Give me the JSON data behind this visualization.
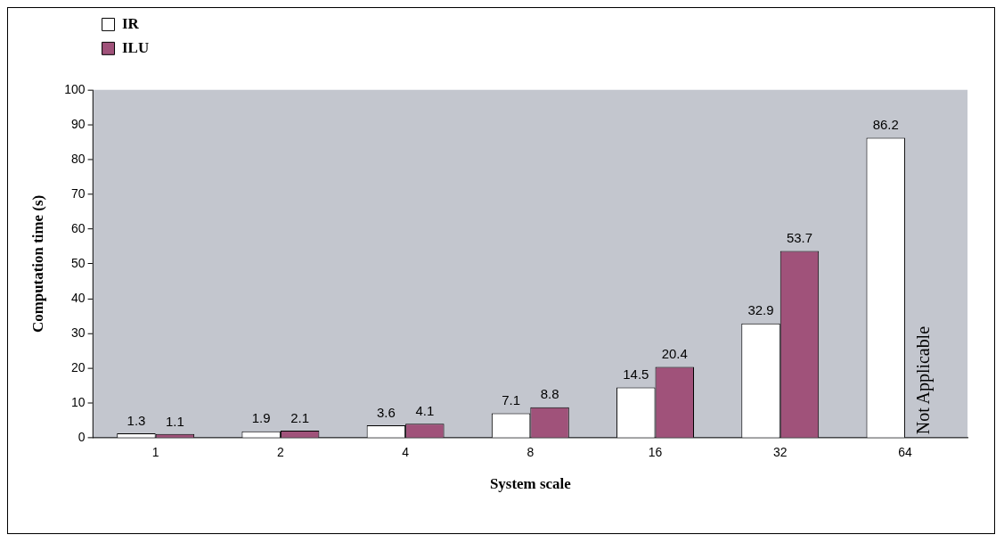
{
  "chart_data": {
    "type": "bar",
    "xlabel": "System scale",
    "ylabel": "Computation time (s)",
    "categories": [
      "1",
      "2",
      "4",
      "8",
      "16",
      "32",
      "64"
    ],
    "series": [
      {
        "name": "IR",
        "color": "#ffffff",
        "values": [
          1.3,
          1.9,
          3.6,
          7.1,
          14.5,
          32.9,
          86.2
        ]
      },
      {
        "name": "ILU",
        "color": "#a0527a",
        "values": [
          1.1,
          2.1,
          4.1,
          8.8,
          20.4,
          53.7,
          null
        ]
      }
    ],
    "ylim": [
      0,
      100
    ],
    "yticks": [
      0,
      10,
      20,
      30,
      40,
      50,
      60,
      70,
      80,
      90,
      100
    ],
    "grid": false,
    "legend": "top left",
    "data_labels": true,
    "annotations": [
      {
        "text": "Not Applicable",
        "x": "64",
        "y": 0
      }
    ]
  }
}
